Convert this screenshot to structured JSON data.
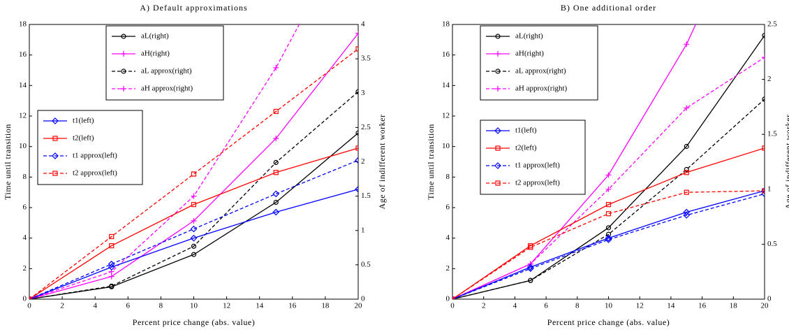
{
  "chart_data": [
    {
      "type": "line",
      "title": "A) Default approximations",
      "x_label": "Percent price change (abs. value)",
      "y_label": "Time until transition",
      "y2_label": "Age of indifferent worker",
      "x": [
        0,
        5,
        10,
        15,
        20
      ],
      "xlim": [
        0,
        20
      ],
      "xticks": [
        0,
        2,
        4,
        6,
        8,
        10,
        12,
        14,
        16,
        18,
        20
      ],
      "ylim": [
        0,
        18
      ],
      "yticks": [
        0,
        2,
        4,
        6,
        8,
        10,
        12,
        14,
        16,
        18
      ],
      "y2lim": [
        0,
        4
      ],
      "y2ticks": [
        0,
        0.5,
        1,
        1.5,
        2,
        2.5,
        3,
        3.5,
        4
      ],
      "series": [
        {
          "name": "aL(right)",
          "color": "#000000",
          "axis": "y2",
          "marker": "circle",
          "dashed": false,
          "values": [
            0,
            0.18,
            0.65,
            1.41,
            2.42
          ]
        },
        {
          "name": "aH(right)",
          "color": "#ff00ff",
          "axis": "y2",
          "marker": "plus",
          "dashed": false,
          "values": [
            0,
            0.33,
            1.14,
            2.34,
            3.87
          ]
        },
        {
          "name": "aL approx(right)",
          "color": "#000000",
          "axis": "y2",
          "marker": "circle",
          "dashed": true,
          "values": [
            0,
            0.19,
            0.77,
            1.99,
            3.02
          ]
        },
        {
          "name": "aH approx(right)",
          "color": "#ff00ff",
          "axis": "y2",
          "marker": "plus",
          "dashed": true,
          "values": [
            0,
            0.4,
            1.5,
            3.37,
            5.6
          ]
        },
        {
          "name": "t1(left)",
          "color": "#0000ff",
          "axis": "y",
          "marker": "diamond",
          "dashed": false,
          "values": [
            0,
            2.1,
            4.0,
            5.7,
            7.2
          ]
        },
        {
          "name": "t2(left)",
          "color": "#ff0000",
          "axis": "y",
          "marker": "square",
          "dashed": false,
          "values": [
            0,
            3.5,
            6.2,
            8.3,
            9.9
          ]
        },
        {
          "name": "t1 approx(left)",
          "color": "#0000ff",
          "axis": "y",
          "marker": "diamond",
          "dashed": true,
          "values": [
            0,
            2.3,
            4.6,
            6.9,
            9.1
          ]
        },
        {
          "name": "t2 approx(left)",
          "color": "#ff0000",
          "axis": "y",
          "marker": "square",
          "dashed": true,
          "values": [
            0,
            4.1,
            8.2,
            12.3,
            16.4
          ]
        }
      ]
    },
    {
      "type": "line",
      "title": "B) One additional order",
      "x_label": "Percent price change (abs. value)",
      "y_label": "Time until transition",
      "y2_label": "Age of indifferent worker",
      "x": [
        0,
        5,
        10,
        15,
        20
      ],
      "xlim": [
        0,
        20
      ],
      "xticks": [
        0,
        2,
        4,
        6,
        8,
        10,
        12,
        14,
        16,
        18,
        20
      ],
      "ylim": [
        0,
        18
      ],
      "yticks": [
        0,
        2,
        4,
        6,
        8,
        10,
        12,
        14,
        16,
        18
      ],
      "y2lim": [
        0,
        2.5
      ],
      "y2ticks": [
        0,
        0.5,
        1,
        1.5,
        2,
        2.5
      ],
      "series": [
        {
          "name": "aL(right)",
          "color": "#000000",
          "axis": "y2",
          "marker": "circle",
          "dashed": false,
          "values": [
            0,
            0.17,
            0.65,
            1.39,
            2.4
          ]
        },
        {
          "name": "aH(right)",
          "color": "#ff00ff",
          "axis": "y2",
          "marker": "plus",
          "dashed": false,
          "values": [
            0,
            0.32,
            1.13,
            2.32,
            3.85
          ]
        },
        {
          "name": "aL approx(right)",
          "color": "#000000",
          "axis": "y2",
          "marker": "circle",
          "dashed": true,
          "values": [
            0,
            0.17,
            0.59,
            1.18,
            1.82
          ]
        },
        {
          "name": "aH approx(right)",
          "color": "#ff00ff",
          "axis": "y2",
          "marker": "plus",
          "dashed": true,
          "values": [
            0,
            0.32,
            1.0,
            1.74,
            2.2
          ]
        },
        {
          "name": "t1(left)",
          "color": "#0000ff",
          "axis": "y",
          "marker": "diamond",
          "dashed": false,
          "values": [
            0,
            2.1,
            4.0,
            5.7,
            7.1
          ]
        },
        {
          "name": "t2(left)",
          "color": "#ff0000",
          "axis": "y",
          "marker": "square",
          "dashed": false,
          "values": [
            0,
            3.5,
            6.2,
            8.3,
            9.9
          ]
        },
        {
          "name": "t1 approx(left)",
          "color": "#0000ff",
          "axis": "y",
          "marker": "diamond",
          "dashed": true,
          "values": [
            0,
            2.0,
            3.9,
            5.5,
            6.9
          ]
        },
        {
          "name": "t2 approx(left)",
          "color": "#ff0000",
          "axis": "y",
          "marker": "square",
          "dashed": true,
          "values": [
            0,
            3.4,
            5.6,
            7.0,
            7.1
          ]
        }
      ]
    }
  ]
}
